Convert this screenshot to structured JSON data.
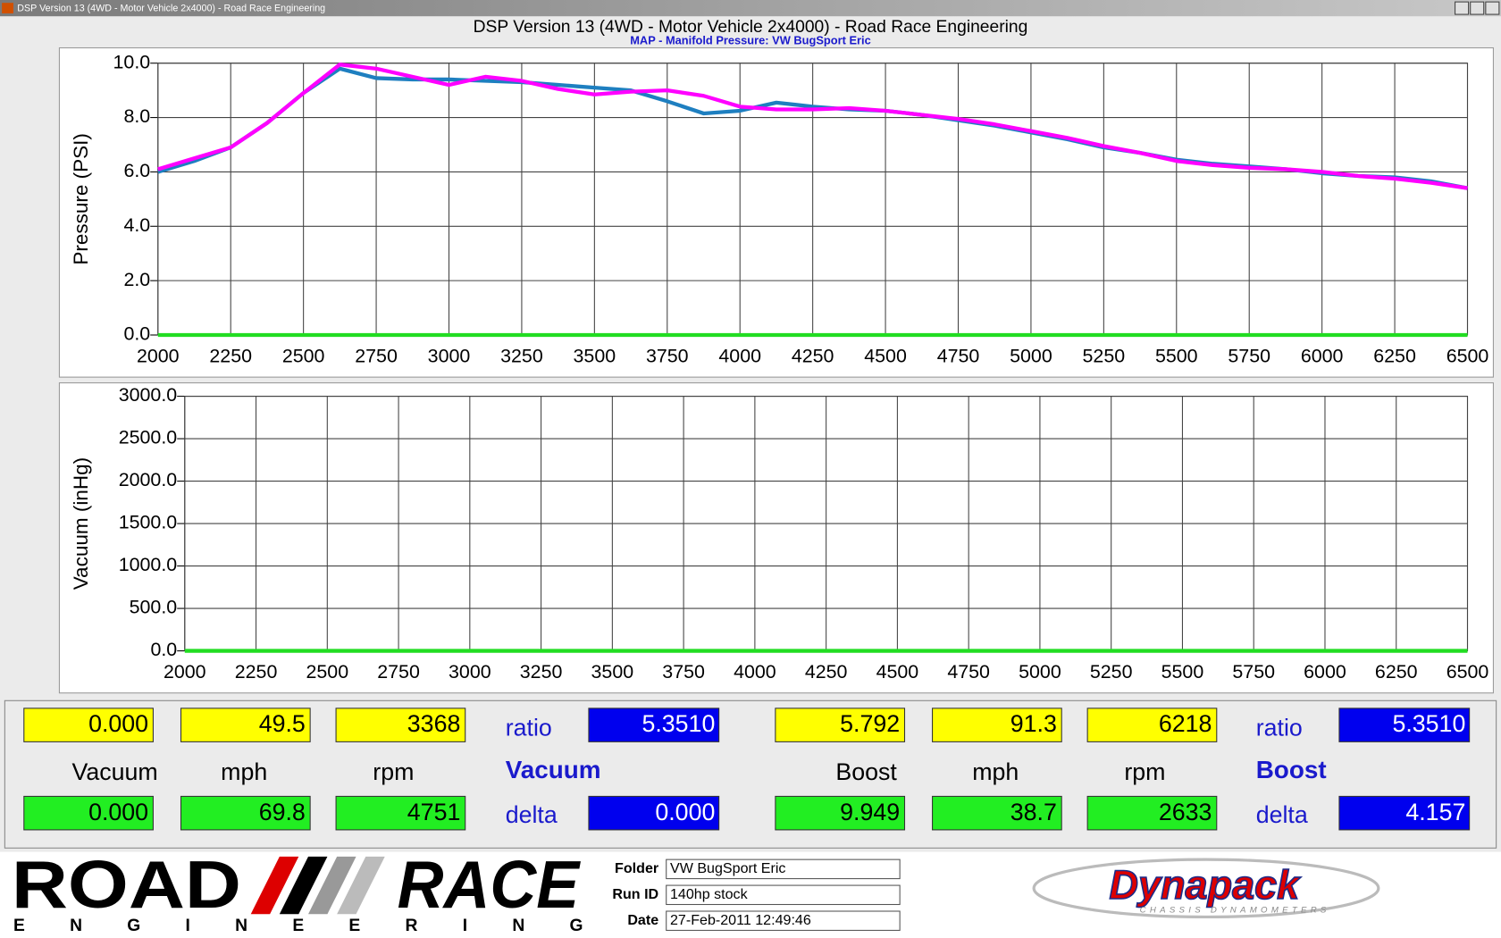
{
  "window_title": "DSP Version 13 (4WD - Motor Vehicle 2x4000) - Road Race Engineering",
  "header_title": "DSP Version 13 (4WD - Motor Vehicle 2x4000) - Road Race Engineering",
  "chart_data": [
    {
      "type": "line",
      "subtitle": "MAP - Manifold Pressure: VW BugSport Eric",
      "ylabel": "Pressure (PSI)",
      "x": [
        2000,
        2125,
        2250,
        2375,
        2500,
        2625,
        2750,
        2875,
        3000,
        3125,
        3250,
        3375,
        3500,
        3625,
        3750,
        3875,
        4000,
        4125,
        4250,
        4375,
        4500,
        4625,
        4750,
        4875,
        5000,
        5125,
        5250,
        5375,
        5500,
        5625,
        5750,
        5875,
        6000,
        6125,
        6250,
        6375,
        6500
      ],
      "series": [
        {
          "color": "#1e7fc0",
          "values": [
            6.0,
            6.4,
            6.9,
            7.8,
            8.9,
            9.8,
            9.45,
            9.4,
            9.4,
            9.35,
            9.3,
            9.2,
            9.1,
            9.0,
            8.6,
            8.15,
            8.25,
            8.55,
            8.4,
            8.3,
            8.25,
            8.1,
            7.9,
            7.7,
            7.45,
            7.2,
            6.9,
            6.7,
            6.45,
            6.3,
            6.2,
            6.1,
            5.95,
            5.85,
            5.8,
            5.65,
            5.4
          ]
        },
        {
          "color": "#ff00ff",
          "values": [
            6.1,
            6.5,
            6.9,
            7.8,
            8.9,
            9.95,
            9.8,
            9.5,
            9.2,
            9.5,
            9.35,
            9.05,
            8.85,
            8.95,
            9.0,
            8.8,
            8.4,
            8.3,
            8.3,
            8.35,
            8.25,
            8.1,
            7.95,
            7.75,
            7.5,
            7.25,
            6.95,
            6.7,
            6.4,
            6.25,
            6.15,
            6.1,
            6.0,
            5.85,
            5.75,
            5.6,
            5.4
          ]
        },
        {
          "color": "#22dd22",
          "values": [
            0,
            0,
            0,
            0,
            0,
            0,
            0,
            0,
            0,
            0,
            0,
            0,
            0,
            0,
            0,
            0,
            0,
            0,
            0,
            0,
            0,
            0,
            0,
            0,
            0,
            0,
            0,
            0,
            0,
            0,
            0,
            0,
            0,
            0,
            0,
            0,
            0
          ]
        }
      ],
      "xlim": [
        2000,
        6500
      ],
      "xticks": [
        2000,
        2250,
        2500,
        2750,
        3000,
        3250,
        3500,
        3750,
        4000,
        4250,
        4500,
        4750,
        5000,
        5250,
        5500,
        5750,
        6000,
        6250,
        6500
      ],
      "ylim": [
        0,
        10
      ],
      "yticks": [
        {
          "value": 0,
          "label": "0.0"
        },
        {
          "value": 2,
          "label": "2.0"
        },
        {
          "value": 4,
          "label": "4.0"
        },
        {
          "value": 6,
          "label": "6.0"
        },
        {
          "value": 8,
          "label": "8.0"
        },
        {
          "value": 10,
          "label": "10.0"
        }
      ],
      "grid": true
    },
    {
      "type": "line",
      "ylabel": "Vacuum (inHg)",
      "x": [
        2000,
        6500
      ],
      "series": [
        {
          "color": "#22dd22",
          "values": [
            0,
            0
          ]
        }
      ],
      "xlim": [
        2000,
        6500
      ],
      "xticks": [
        2000,
        2250,
        2500,
        2750,
        3000,
        3250,
        3500,
        3750,
        4000,
        4250,
        4500,
        4750,
        5000,
        5250,
        5500,
        5750,
        6000,
        6250,
        6500
      ],
      "ylim": [
        0,
        3000
      ],
      "yticks": [
        {
          "value": 0,
          "label": "0.0"
        },
        {
          "value": 500,
          "label": "500.0"
        },
        {
          "value": 1000,
          "label": "1000.0"
        },
        {
          "value": 1500,
          "label": "1500.0"
        },
        {
          "value": 2000,
          "label": "2000.0"
        },
        {
          "value": 2500,
          "label": "2500.0"
        },
        {
          "value": 3000,
          "label": "3000.0"
        }
      ],
      "grid": true
    }
  ],
  "readouts": [
    {
      "top": [
        "0.000",
        "49.5",
        "3368"
      ],
      "labels": [
        "Vacuum",
        "mph",
        "rpm"
      ],
      "bottom": [
        "0.000",
        "69.8",
        "4751"
      ],
      "ratio_label": "ratio",
      "ratio": "5.3510",
      "mode": "Vacuum",
      "delta_label": "delta",
      "delta": "0.000"
    },
    {
      "top": [
        "5.792",
        "91.3",
        "6218"
      ],
      "labels": [
        "Boost",
        "mph",
        "rpm"
      ],
      "bottom": [
        "9.949",
        "38.7",
        "2633"
      ],
      "ratio_label": "ratio",
      "ratio": "5.3510",
      "mode": "Boost",
      "delta_label": "delta",
      "delta": "4.157"
    }
  ],
  "footer": {
    "logo_left": {
      "word1": "ROAD",
      "word2": "RACE",
      "sub": "ENGINEERING"
    },
    "fields": [
      {
        "label": "Folder",
        "value": "VW BugSport Eric"
      },
      {
        "label": "Run ID",
        "value": "140hp stock"
      },
      {
        "label": "Date",
        "value": "27-Feb-2011 12:49:46"
      }
    ],
    "logo_right": {
      "name": "Dynapack",
      "sub": "CHASSIS DYNAMOMETERS"
    }
  }
}
